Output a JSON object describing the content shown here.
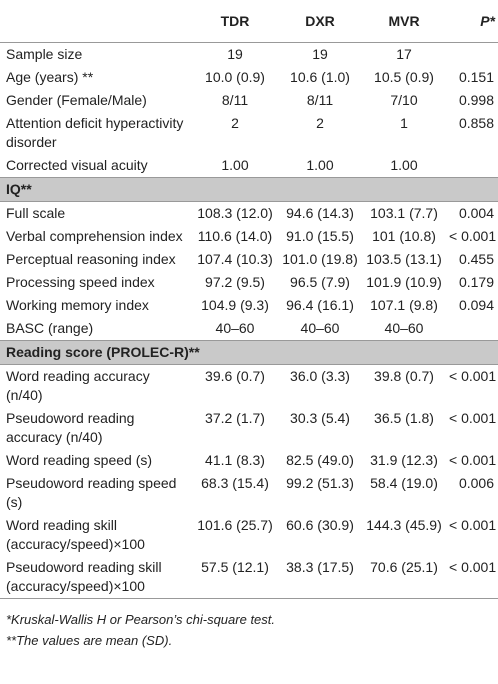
{
  "table": {
    "columns": [
      "TDR",
      "DXR",
      "MVR",
      "P*"
    ],
    "rows": [
      {
        "label": "Sample size",
        "values": [
          "19",
          "19",
          "17",
          ""
        ]
      },
      {
        "label": "Age (years) **",
        "values": [
          "10.0 (0.9)",
          "10.6 (1.0)",
          "10.5 (0.9)",
          "0.151"
        ]
      },
      {
        "label": "Gender (Female/Male)",
        "values": [
          "8/11",
          "8/11",
          "7/10",
          "0.998"
        ]
      },
      {
        "label": "Attention deficit hyperactivity disorder",
        "values": [
          "2",
          "2",
          "1",
          "0.858"
        ]
      },
      {
        "label": "Corrected visual acuity",
        "values": [
          "1.00",
          "1.00",
          "1.00",
          ""
        ]
      },
      {
        "heading": "IQ**"
      },
      {
        "label": "Full scale",
        "values": [
          "108.3 (12.0)",
          "94.6 (14.3)",
          "103.1 (7.7)",
          "0.004"
        ]
      },
      {
        "label": "Verbal comprehension index",
        "values": [
          "110.6 (14.0)",
          "91.0 (15.5)",
          "101 (10.8)",
          "< 0.001"
        ]
      },
      {
        "label": "Perceptual reasoning index",
        "values": [
          "107.4 (10.3)",
          "101.0 (19.8)",
          "103.5 (13.1)",
          "0.455"
        ]
      },
      {
        "label": "Processing speed index",
        "values": [
          "97.2 (9.5)",
          "96.5 (7.9)",
          "101.9 (10.9)",
          "0.179"
        ]
      },
      {
        "label": "Working memory index",
        "values": [
          "104.9 (9.3)",
          "96.4 (16.1)",
          "107.1 (9.8)",
          "0.094"
        ]
      },
      {
        "label": "BASC (range)",
        "values": [
          "40–60",
          "40–60",
          "40–60",
          ""
        ]
      },
      {
        "heading": "Reading score (PROLEC-R)**"
      },
      {
        "label": "Word reading accuracy (n/40)",
        "values": [
          "39.6 (0.7)",
          "36.0 (3.3)",
          "39.8 (0.7)",
          "< 0.001"
        ]
      },
      {
        "label": "Pseudoword reading accuracy (n/40)",
        "values": [
          "37.2 (1.7)",
          "30.3 (5.4)",
          "36.5 (1.8)",
          "< 0.001"
        ]
      },
      {
        "label": "Word reading speed (s)",
        "values": [
          "41.1 (8.3)",
          "82.5 (49.0)",
          "31.9 (12.3)",
          "< 0.001"
        ]
      },
      {
        "label": "Pseudoword reading speed (s)",
        "values": [
          "68.3 (15.4)",
          "99.2 (51.3)",
          "58.4 (19.0)",
          "0.006"
        ]
      },
      {
        "label": "Word reading skill (accuracy/speed)×100",
        "values": [
          "101.6 (25.7)",
          "60.6 (30.9)",
          "144.3 (45.9)",
          "< 0.001"
        ]
      },
      {
        "label": "Pseudoword reading skill (accuracy/speed)×100",
        "values": [
          "57.5 (12.1)",
          "38.3 (17.5)",
          "70.6 (25.1)",
          "< 0.001"
        ]
      }
    ],
    "footnotes": [
      "*Kruskal-Wallis H or Pearson’s chi-square test.",
      "**The values are mean (SD)."
    ]
  }
}
